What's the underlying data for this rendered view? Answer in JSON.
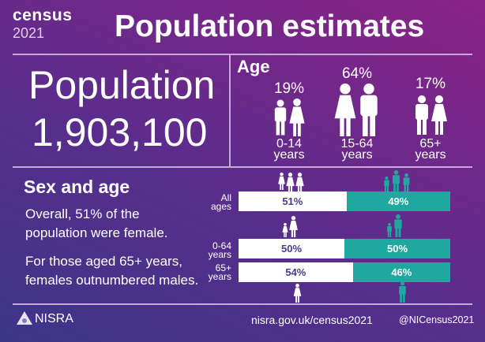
{
  "header": {
    "logo_word": "census",
    "logo_year": "2021",
    "title": "Population estimates"
  },
  "population": {
    "label": "Population",
    "value": "1,903,100"
  },
  "age": {
    "title": "Age",
    "groups": [
      {
        "pct": "19%",
        "label1": "0-14",
        "label2": "years",
        "icon": "children-icon"
      },
      {
        "pct": "64%",
        "label1": "15-64",
        "label2": "years",
        "icon": "adults-icon"
      },
      {
        "pct": "17%",
        "label1": "65+",
        "label2": "years",
        "icon": "elderly-icon"
      }
    ]
  },
  "sex_age": {
    "title": "Sex and age",
    "text1a": "Overall, 51% of the",
    "text1b": "population were female.",
    "text2a": "For those aged 65+ years,",
    "text2b": "females outnumbered males.",
    "bars": [
      {
        "label1": "All",
        "label2": "ages",
        "female": 51,
        "male": 49,
        "female_label": "51%",
        "male_label": "49%"
      },
      {
        "label1": "0-64",
        "label2": "years",
        "female": 50,
        "male": 50,
        "female_label": "50%",
        "male_label": "50%"
      },
      {
        "label1": "65+",
        "label2": "years",
        "female": 54,
        "male": 46,
        "female_label": "54%",
        "male_label": "46%"
      }
    ]
  },
  "colors": {
    "female": "#ffffff",
    "male": "#1fa8a0"
  },
  "footer": {
    "org": "NISRA",
    "url": "nisra.gov.uk/census2021",
    "handle": "@NICensus2021"
  }
}
